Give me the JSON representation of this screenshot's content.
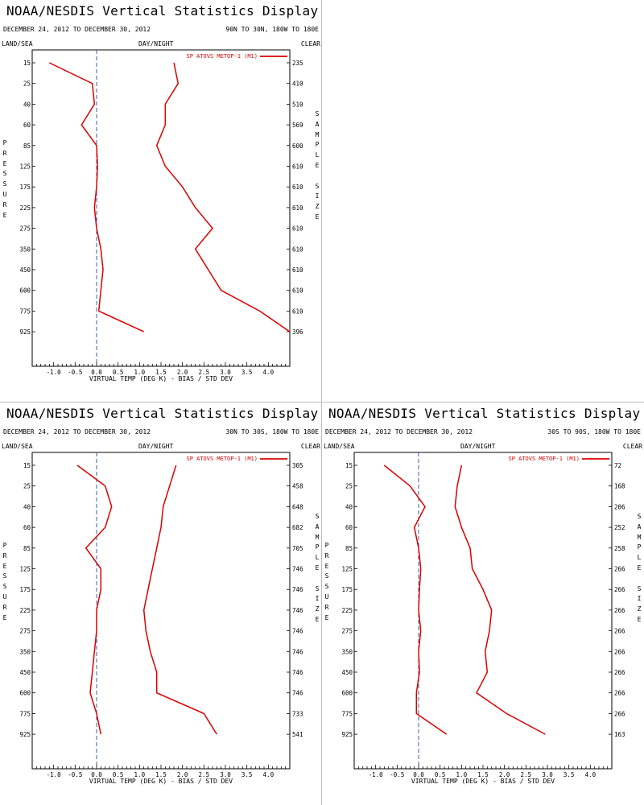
{
  "page": {
    "background": "#ffffff",
    "separator_color": "#bcbcbc"
  },
  "title": "NOAA/NESDIS Vertical Statistics Display",
  "date_range": "DECEMBER 24, 2012 TO DECEMBER 30, 2012",
  "header_labels": {
    "land_sea": "LAND/SEA",
    "day_night": "DAY/NIGHT",
    "clear": "CLEAR",
    "pressure": "PRESSURE",
    "sample_size": "SAMPLE SIZE"
  },
  "chart_data": [
    {
      "type": "line",
      "region": "90N TO 30N, 180W TO 180E",
      "xlabel": "VIRTUAL TEMP (DEG K) - BIAS / STD DEV",
      "ylabel": "PRESSURE",
      "y2label": "SAMPLE SIZE",
      "xlim": [
        -1.5,
        4.5
      ],
      "x_ticks": [
        "-1.0",
        "-0.5",
        "0.0",
        "0.5",
        "1.0",
        "1.5",
        "2.0",
        "2.5",
        "3.0",
        "3.5",
        "4.0"
      ],
      "pressure_levels": [
        "15",
        "25",
        "40",
        "60",
        "85",
        "125",
        "175",
        "225",
        "275",
        "350",
        "450",
        "600",
        "775",
        "925"
      ],
      "sample_size": [
        "235",
        "410",
        "510",
        "569",
        "600",
        "610",
        "610",
        "610",
        "610",
        "610",
        "610",
        "610",
        "610",
        "396"
      ],
      "legend": {
        "label": "SP ATOVS METOP-1 (M1)",
        "position": "top-right"
      },
      "series_color": "#dd0000",
      "series": [
        {
          "name": "bias",
          "values": [
            -1.1,
            -0.1,
            -0.05,
            -0.35,
            0.0,
            0.02,
            0.0,
            -0.05,
            0.0,
            0.1,
            0.15,
            0.1,
            0.05,
            1.1
          ]
        },
        {
          "name": "std_dev",
          "values": [
            1.8,
            1.9,
            1.6,
            1.6,
            1.4,
            1.6,
            2.0,
            2.3,
            2.7,
            2.3,
            2.6,
            2.9,
            3.8,
            4.5
          ]
        }
      ]
    },
    {
      "type": "line",
      "region": "30N TO 30S, 180W TO 180E",
      "xlabel": "VIRTUAL TEMP (DEG K) - BIAS / STD DEV",
      "ylabel": "PRESSURE",
      "y2label": "SAMPLE SIZE",
      "xlim": [
        -1.5,
        4.5
      ],
      "x_ticks": [
        "-1.0",
        "-0.5",
        "0.0",
        "0.5",
        "1.0",
        "1.5",
        "2.0",
        "2.5",
        "3.0",
        "3.5",
        "4.0"
      ],
      "pressure_levels": [
        "15",
        "25",
        "40",
        "60",
        "85",
        "125",
        "175",
        "225",
        "275",
        "350",
        "450",
        "600",
        "775",
        "925"
      ],
      "sample_size": [
        "305",
        "458",
        "648",
        "682",
        "705",
        "746",
        "746",
        "746",
        "746",
        "746",
        "746",
        "746",
        "733",
        "541"
      ],
      "legend": {
        "label": "SP ATOVS METOP-1 (M1)",
        "position": "top-right"
      },
      "series_color": "#dd0000",
      "series": [
        {
          "name": "bias",
          "values": [
            -0.45,
            0.2,
            0.35,
            0.2,
            -0.25,
            0.1,
            0.1,
            0.0,
            0.0,
            -0.05,
            -0.1,
            -0.15,
            0.0,
            0.1
          ]
        },
        {
          "name": "std_dev",
          "values": [
            1.85,
            1.7,
            1.55,
            1.5,
            1.4,
            1.3,
            1.2,
            1.1,
            1.15,
            1.25,
            1.4,
            1.4,
            2.5,
            2.8
          ]
        }
      ]
    },
    {
      "type": "line",
      "region": "30S TO 90S, 180W TO 180E",
      "xlabel": "VIRTUAL TEMP (DEG K) - BIAS / STD DEV",
      "ylabel": "PRESSURE",
      "y2label": "SAMPLE SIZE",
      "xlim": [
        -1.5,
        4.5
      ],
      "x_ticks": [
        "-1.0",
        "-0.5",
        "0.0",
        "0.5",
        "1.0",
        "1.5",
        "2.0",
        "2.5",
        "3.0",
        "3.5",
        "4.0"
      ],
      "pressure_levels": [
        "15",
        "25",
        "40",
        "60",
        "85",
        "125",
        "175",
        "225",
        "275",
        "350",
        "450",
        "600",
        "775",
        "925"
      ],
      "sample_size": [
        "72",
        "168",
        "206",
        "252",
        "258",
        "266",
        "266",
        "266",
        "266",
        "266",
        "266",
        "266",
        "266",
        "163"
      ],
      "legend": {
        "label": "SP ATOVS METOP-1 (M1)",
        "position": "top-right"
      },
      "series_color": "#dd0000",
      "series": [
        {
          "name": "bias",
          "values": [
            -0.8,
            -0.2,
            0.15,
            -0.1,
            0.0,
            0.05,
            0.02,
            0.0,
            0.05,
            0.0,
            0.02,
            -0.05,
            -0.05,
            0.65
          ]
        },
        {
          "name": "std_dev",
          "values": [
            1.0,
            0.9,
            0.85,
            1.0,
            1.2,
            1.25,
            1.5,
            1.7,
            1.65,
            1.55,
            1.6,
            1.35,
            2.05,
            2.95
          ]
        }
      ]
    }
  ]
}
